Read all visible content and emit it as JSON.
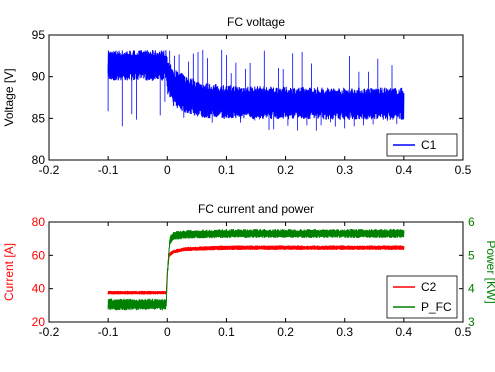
{
  "colors": {
    "voltage": "#0000ff",
    "current": "#ff0000",
    "power": "#008000",
    "axis": "#000000",
    "current_axis": "#ff0000",
    "power_axis": "#008000"
  },
  "chart_data": [
    {
      "type": "line",
      "title": "FC voltage",
      "xlabel": "",
      "ylabel": "Voltage [V]",
      "xlim": [
        -0.2,
        0.5
      ],
      "ylim": [
        80,
        95
      ],
      "xticks": [
        "-0.2",
        "-0.1",
        "0",
        "0.1",
        "0.2",
        "0.3",
        "0.4",
        "0.5"
      ],
      "yticks": [
        "80",
        "85",
        "90",
        "95"
      ],
      "grid": false,
      "legend_position": "bottom-right",
      "series": [
        {
          "name": "C1",
          "color": "#0000ff",
          "style": "noisy band",
          "x": [
            -0.1,
            -0.002,
            0.0,
            0.01,
            0.03,
            0.06,
            0.1,
            0.2,
            0.3,
            0.4
          ],
          "center": [
            91.5,
            91.5,
            90.3,
            88.8,
            88.0,
            87.3,
            87.0,
            86.9,
            86.8,
            86.8
          ],
          "band_low": [
            89.5,
            89.5,
            88.0,
            86.5,
            85.6,
            85.0,
            84.9,
            84.9,
            84.8,
            84.8
          ],
          "band_high": [
            93.2,
            93.2,
            92.0,
            91.0,
            90.2,
            89.3,
            89.0,
            88.8,
            88.7,
            88.7
          ],
          "spike_min": 83.5,
          "spike_max": 93.5
        }
      ]
    },
    {
      "type": "line",
      "title": "FC current and power",
      "xlabel": "",
      "ylabel": "Current [A]",
      "y2label": "Power [KW]",
      "xlim": [
        -0.2,
        0.5
      ],
      "ylim": [
        20,
        80
      ],
      "y2lim": [
        3,
        6
      ],
      "xticks": [
        "-0.2",
        "-0.1",
        "0",
        "0.1",
        "0.2",
        "0.3",
        "0.4",
        "0.5"
      ],
      "yticks": [
        "20",
        "40",
        "60",
        "80"
      ],
      "y2ticks": [
        "3",
        "4",
        "5",
        "6"
      ],
      "grid": false,
      "legend_position": "bottom-right",
      "series": [
        {
          "name": "C2",
          "axis": "left",
          "color": "#ff0000",
          "style": "noisy band",
          "x": [
            -0.1,
            -0.002,
            0.0,
            0.003,
            0.01,
            0.03,
            0.1,
            0.2,
            0.3,
            0.4
          ],
          "center": [
            37.5,
            37.5,
            50,
            60,
            62,
            63.5,
            64.5,
            64.5,
            64.5,
            64.5
          ],
          "band_low": [
            36.5,
            36.5,
            48,
            59,
            61,
            62.5,
            63.2,
            63.2,
            63.2,
            63.2
          ],
          "band_high": [
            38.7,
            38.7,
            52,
            61.5,
            63.5,
            65,
            66,
            66,
            66,
            66
          ]
        },
        {
          "name": "P_FC",
          "axis": "right",
          "color": "#008000",
          "style": "noisy band",
          "x": [
            -0.1,
            -0.002,
            0.0,
            0.004,
            0.01,
            0.03,
            0.1,
            0.2,
            0.3,
            0.4
          ],
          "center": [
            3.53,
            3.53,
            4.5,
            5.45,
            5.58,
            5.62,
            5.65,
            5.65,
            5.65,
            5.65
          ],
          "band_low": [
            3.35,
            3.35,
            4.3,
            5.3,
            5.45,
            5.5,
            5.52,
            5.52,
            5.52,
            5.52
          ],
          "band_high": [
            3.7,
            3.7,
            4.7,
            5.6,
            5.72,
            5.76,
            5.79,
            5.79,
            5.79,
            5.79
          ]
        }
      ]
    }
  ]
}
